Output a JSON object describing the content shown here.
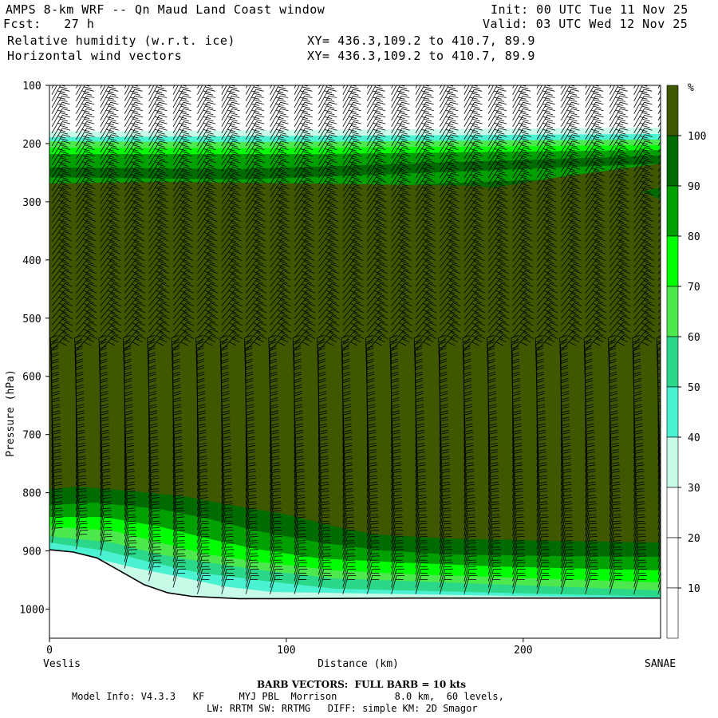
{
  "header": {
    "title": "AMPS 8-km WRF -- Qn Maud Land Coast window",
    "init": "Init: 00 UTC Tue 11 Nov 25",
    "fcst": "Fcst:   27 h",
    "valid": "Valid: 03 UTC Wed 12 Nov 25",
    "field1": "Relative humidity (w.r.t. ice)",
    "field2": "Horizontal wind vectors",
    "xy1": "XY= 436.3,109.2 to 410.7, 89.9",
    "xy2": "XY= 436.3,109.2 to 410.7, 89.9"
  },
  "footer": {
    "barb_note": "BARB VECTORS:  FULL BARB = 10 kts",
    "model_info": "Model Info: V4.3.3   KF      MYJ PBL  Morrison          8.0 km,  60 levels,",
    "model_info2": "LW: RRTM SW: RRTMG   DIFF: simple KM: 2D Smagor"
  },
  "colors": {
    "rh_100": "#3f5800",
    "rh_90": "#006b00",
    "rh_80": "#00a000",
    "rh_70": "#00ff00",
    "rh_60": "#4de84d",
    "rh_50": "#2bd88a",
    "rh_40": "#4af2d2",
    "rh_30": "#c8fae8",
    "rh_low": "#ffffff"
  },
  "chart_data": {
    "type": "heatmap",
    "title": "Relative humidity (w.r.t. ice) cross-section with horizontal wind barbs",
    "xlabel": "Distance (km)",
    "ylabel": "Pressure (hPa)",
    "x_range": [
      0,
      258
    ],
    "y_range": [
      100,
      1050
    ],
    "x_ticks": [
      0,
      100,
      200
    ],
    "y_ticks": [
      100,
      200,
      300,
      400,
      500,
      600,
      700,
      800,
      900,
      1000
    ],
    "x_endpoints": {
      "left": "Veslis",
      "right": "SANAE"
    },
    "colorbar": {
      "unit": "%",
      "levels": [
        100,
        90,
        80,
        70,
        60,
        50,
        40,
        30,
        20,
        10
      ]
    },
    "surface_pressure_hPa": [
      [
        0,
        898
      ],
      [
        10,
        902
      ],
      [
        20,
        912
      ],
      [
        30,
        935
      ],
      [
        40,
        958
      ],
      [
        50,
        972
      ],
      [
        60,
        978
      ],
      [
        80,
        982
      ],
      [
        100,
        982
      ],
      [
        150,
        981
      ],
      [
        200,
        981
      ],
      [
        258,
        981
      ]
    ],
    "rh_layers": [
      {
        "range": "> 100",
        "base_hPa_approx": "300-790",
        "note": "mid-troposphere saturated"
      },
      {
        "range": "90-100",
        "note": "bands near 200-300 hPa and 790-880 hPa"
      },
      {
        "range": "30-70",
        "note": "thin band near 170-200 hPa and boundary layer 880-980 hPa"
      },
      {
        "range": "< 30",
        "note": "above 170 hPa"
      }
    ],
    "barbs": {
      "columns": 26,
      "full_barb_kts": 10
    }
  }
}
